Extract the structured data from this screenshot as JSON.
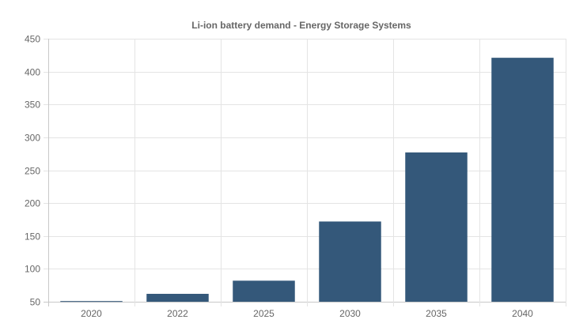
{
  "chart_data": {
    "type": "bar",
    "title": "Li-ion battery demand - Energy Storage Systems",
    "categories": [
      "2020",
      "2022",
      "2025",
      "2030",
      "2035",
      "2040"
    ],
    "values": [
      51,
      62,
      82,
      172,
      277,
      421
    ],
    "ylim": [
      50,
      450
    ],
    "yticks": [
      50,
      100,
      150,
      200,
      250,
      300,
      350,
      400,
      450
    ],
    "xlabel": "",
    "ylabel": "",
    "grid": true,
    "bar_color": "#34587a"
  }
}
